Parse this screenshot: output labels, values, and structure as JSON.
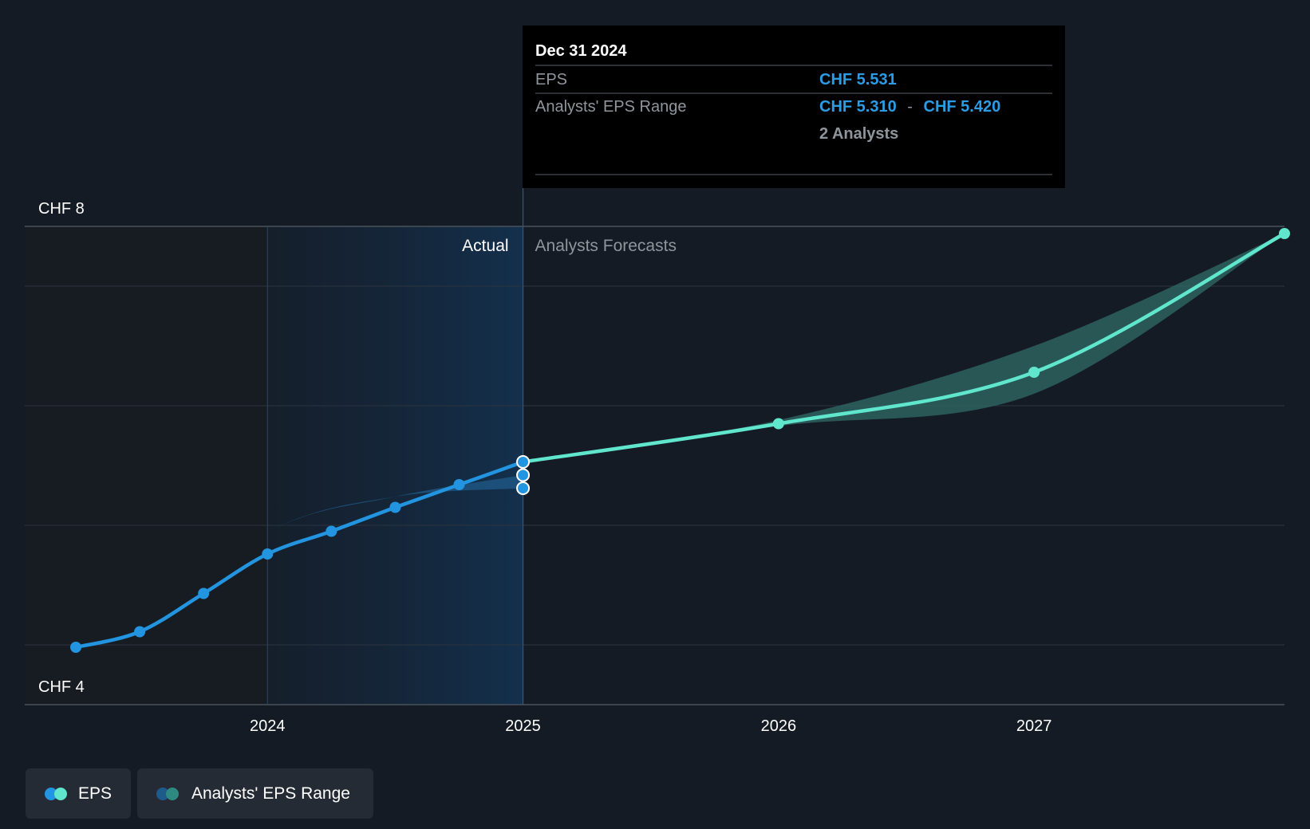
{
  "colors": {
    "background": "#151b24",
    "actual_line": "#2394df",
    "forecast_line": "#5fe6cc",
    "range_actual": "#1f5b8a",
    "range_forecast": "#2e6663",
    "tooltip_bg": "#000000",
    "tooltip_value": "#2b9ce6",
    "grid": "#2c343f",
    "axis_text": "#ffffff",
    "muted_text": "#8f959d"
  },
  "tooltip": {
    "date": "Dec 31 2024",
    "eps_label": "EPS",
    "eps_value": "CHF 5.531",
    "range_label": "Analysts' EPS Range",
    "range_low": "CHF 5.310",
    "range_sep": "-",
    "range_high": "CHF 5.420",
    "analysts": "2 Analysts"
  },
  "legend": {
    "eps_label": "EPS",
    "range_label": "Analysts' EPS Range"
  },
  "chart_data": {
    "type": "line",
    "y_unit": "CHF",
    "ylim": [
      4,
      8
    ],
    "y_labels": [
      {
        "value": 8,
        "text": "CHF 8"
      },
      {
        "value": 4,
        "text": "CHF 4"
      }
    ],
    "y_gridlines": [
      8,
      7.5,
      6.5,
      5.5,
      4.5
    ],
    "xlim": [
      2023.05,
      2027.98
    ],
    "x_ticks": [
      {
        "value": 2024,
        "label": "2024"
      },
      {
        "value": 2025,
        "label": "2025"
      },
      {
        "value": 2026,
        "label": "2026"
      },
      {
        "value": 2027,
        "label": "2027"
      }
    ],
    "divider_x": 2025,
    "actual_region_start": 2024,
    "section_labels": {
      "actual": "Actual",
      "forecast": "Analysts Forecasts"
    },
    "grid": true,
    "legend_position": "bottom-left",
    "series": [
      {
        "name": "EPS",
        "role": "actual",
        "points": [
          {
            "x": 2023.25,
            "y": 4.48
          },
          {
            "x": 2023.5,
            "y": 4.61
          },
          {
            "x": 2023.75,
            "y": 4.93
          },
          {
            "x": 2024.0,
            "y": 5.26
          },
          {
            "x": 2024.25,
            "y": 5.45
          },
          {
            "x": 2024.5,
            "y": 5.65
          },
          {
            "x": 2024.75,
            "y": 5.84
          },
          {
            "x": 2025.0,
            "y": 6.03
          }
        ]
      },
      {
        "name": "EPS",
        "role": "forecast",
        "points": [
          {
            "x": 2025.0,
            "y": 6.03
          },
          {
            "x": 2026.0,
            "y": 6.35
          },
          {
            "x": 2027.0,
            "y": 6.78
          },
          {
            "x": 2027.98,
            "y": 7.94
          }
        ]
      },
      {
        "name": "Analysts' EPS Range",
        "role": "range_actual",
        "points": [
          {
            "x": 2023.25,
            "y_low": 4.48,
            "y_high": 4.48
          },
          {
            "x": 2024.0,
            "y_low": 5.45,
            "y_high": 5.45
          },
          {
            "x": 2024.5,
            "y_low": 5.74,
            "y_high": 5.74
          },
          {
            "x": 2025.0,
            "y_low": 5.81,
            "y_high": 5.92
          }
        ]
      },
      {
        "name": "Analysts' EPS Range",
        "role": "range_forecast",
        "points": [
          {
            "x": 2025.0,
            "y_low": 6.03,
            "y_high": 6.03
          },
          {
            "x": 2026.0,
            "y_low": 6.33,
            "y_high": 6.38
          },
          {
            "x": 2027.0,
            "y_low": 6.6,
            "y_high": 7.0
          },
          {
            "x": 2027.98,
            "y_low": 7.94,
            "y_high": 7.94
          }
        ]
      }
    ],
    "highlighted_markers": [
      6.03,
      5.92,
      5.81
    ]
  }
}
